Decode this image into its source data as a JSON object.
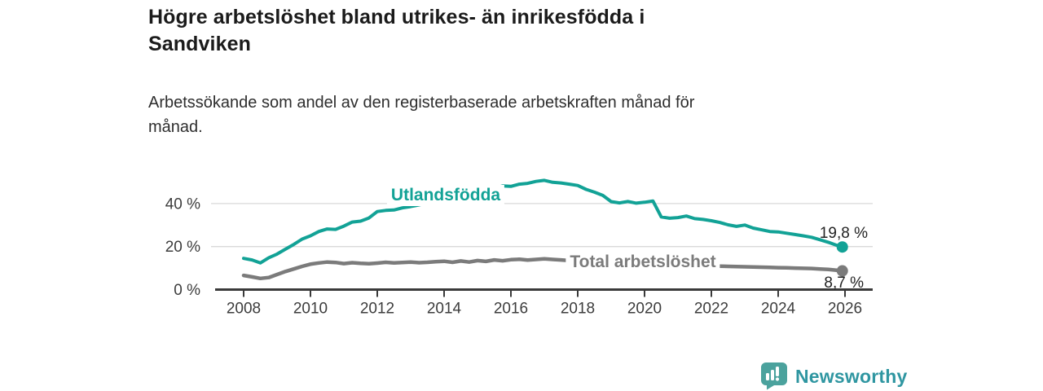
{
  "title": "Högre arbetslöshet bland utrikes- än inrikesfödda i Sandviken",
  "title_lines": [
    "Högre arbetslöshet bland utrikes- än inrikesfödda i",
    "Sandviken"
  ],
  "subtitle": "Arbetssökande som andel av den registerbaserade arbetskraften månad för månad.",
  "subtitle_lines": [
    "Arbetssökande som andel av den registerbaserade arbetskraften månad för",
    "månad."
  ],
  "branding": {
    "logo_text": "Newsworthy",
    "icon_color": "#4ba29d",
    "wordmark_color": "#2f96a1"
  },
  "chart_data": {
    "type": "line",
    "title": "",
    "xlabel": "",
    "ylabel": "",
    "x_unit": "year (monthly data shown)",
    "y_unit": "percent of registered labour force",
    "xlim": [
      2007.15,
      2026.8
    ],
    "ylim": [
      0,
      55
    ],
    "grid": "horizontal",
    "legend_position": "inline-on-line",
    "xticks": [
      2008,
      2010,
      2012,
      2014,
      2016,
      2018,
      2020,
      2022,
      2024,
      2026
    ],
    "yticks": [
      {
        "value": 0,
        "label": "0 %"
      },
      {
        "value": 20,
        "label": "20 %"
      },
      {
        "value": 40,
        "label": "40 %"
      }
    ],
    "colors": {
      "grid": "#d9d9d9",
      "axis": "#3a3a3a",
      "tick_text": "#3c3c3c",
      "value_label": "#222222"
    },
    "x": [
      2008.0,
      2008.25,
      2008.5,
      2008.75,
      2009.0,
      2009.25,
      2009.5,
      2009.75,
      2010.0,
      2010.25,
      2010.5,
      2010.75,
      2011.0,
      2011.25,
      2011.5,
      2011.75,
      2012.0,
      2012.25,
      2012.5,
      2012.75,
      2013.0,
      2013.25,
      2013.5,
      2013.75,
      2014.0,
      2014.25,
      2014.5,
      2014.75,
      2015.0,
      2015.25,
      2015.5,
      2015.75,
      2016.0,
      2016.25,
      2016.5,
      2016.75,
      2017.0,
      2017.25,
      2017.5,
      2017.75,
      2018.0,
      2018.25,
      2018.5,
      2018.75,
      2019.0,
      2019.25,
      2019.5,
      2019.75,
      2020.0,
      2020.25,
      2020.5,
      2020.75,
      2021.0,
      2021.25,
      2021.5,
      2021.75,
      2022.0,
      2022.25,
      2022.5,
      2022.75,
      2023.0,
      2023.25,
      2023.5,
      2023.75,
      2024.0,
      2024.25,
      2024.5,
      2024.75,
      2025.0,
      2025.25,
      2025.5,
      2025.75,
      2025.92
    ],
    "series": [
      {
        "id": "utlandsfodda",
        "name": "Utlandsfödda",
        "color": "#12a296",
        "line_width": 4,
        "end_value": 19.8,
        "end_label": "19,8 %",
        "values": [
          14.5,
          13.8,
          12.4,
          14.8,
          16.5,
          18.8,
          21.0,
          23.5,
          25.0,
          27.0,
          28.2,
          28.0,
          29.5,
          31.4,
          31.8,
          33.3,
          36.3,
          36.8,
          37.0,
          38.0,
          38.6,
          39.4,
          40.3,
          41.2,
          42.0,
          42.8,
          43.5,
          44.3,
          45.0,
          45.8,
          47.0,
          48.2,
          48.0,
          49.0,
          49.4,
          50.3,
          50.8,
          49.9,
          49.6,
          49.0,
          48.4,
          46.6,
          45.3,
          43.8,
          40.9,
          40.3,
          41.0,
          40.2,
          40.6,
          41.2,
          33.8,
          33.2,
          33.5,
          34.2,
          33.0,
          32.6,
          32.0,
          31.2,
          30.1,
          29.4,
          30.0,
          28.6,
          27.8,
          27.0,
          26.8,
          26.2,
          25.6,
          25.0,
          24.3,
          23.2,
          22.0,
          20.6,
          19.8
        ]
      },
      {
        "id": "total",
        "name": "Total arbetslöshet",
        "color": "#7b7b7b",
        "line_width": 4.5,
        "end_value": 8.7,
        "end_label": "8,7 %",
        "values": [
          6.6,
          5.9,
          5.2,
          5.6,
          7.0,
          8.4,
          9.6,
          10.8,
          11.8,
          12.4,
          12.8,
          12.6,
          12.1,
          12.5,
          12.2,
          12.0,
          12.3,
          12.7,
          12.4,
          12.6,
          12.8,
          12.5,
          12.7,
          13.0,
          13.2,
          12.7,
          13.3,
          12.8,
          13.5,
          13.1,
          13.8,
          13.4,
          13.9,
          14.1,
          13.7,
          14.0,
          14.3,
          14.0,
          13.8,
          13.5,
          13.3,
          13.0,
          12.8,
          12.5,
          12.2,
          12.0,
          12.1,
          11.9,
          12.2,
          12.7,
          12.4,
          12.1,
          11.9,
          11.6,
          11.4,
          11.2,
          11.0,
          10.9,
          10.8,
          10.7,
          10.6,
          10.5,
          10.4,
          10.3,
          10.2,
          10.1,
          10.0,
          9.9,
          9.8,
          9.6,
          9.4,
          9.0,
          8.7
        ]
      }
    ]
  }
}
